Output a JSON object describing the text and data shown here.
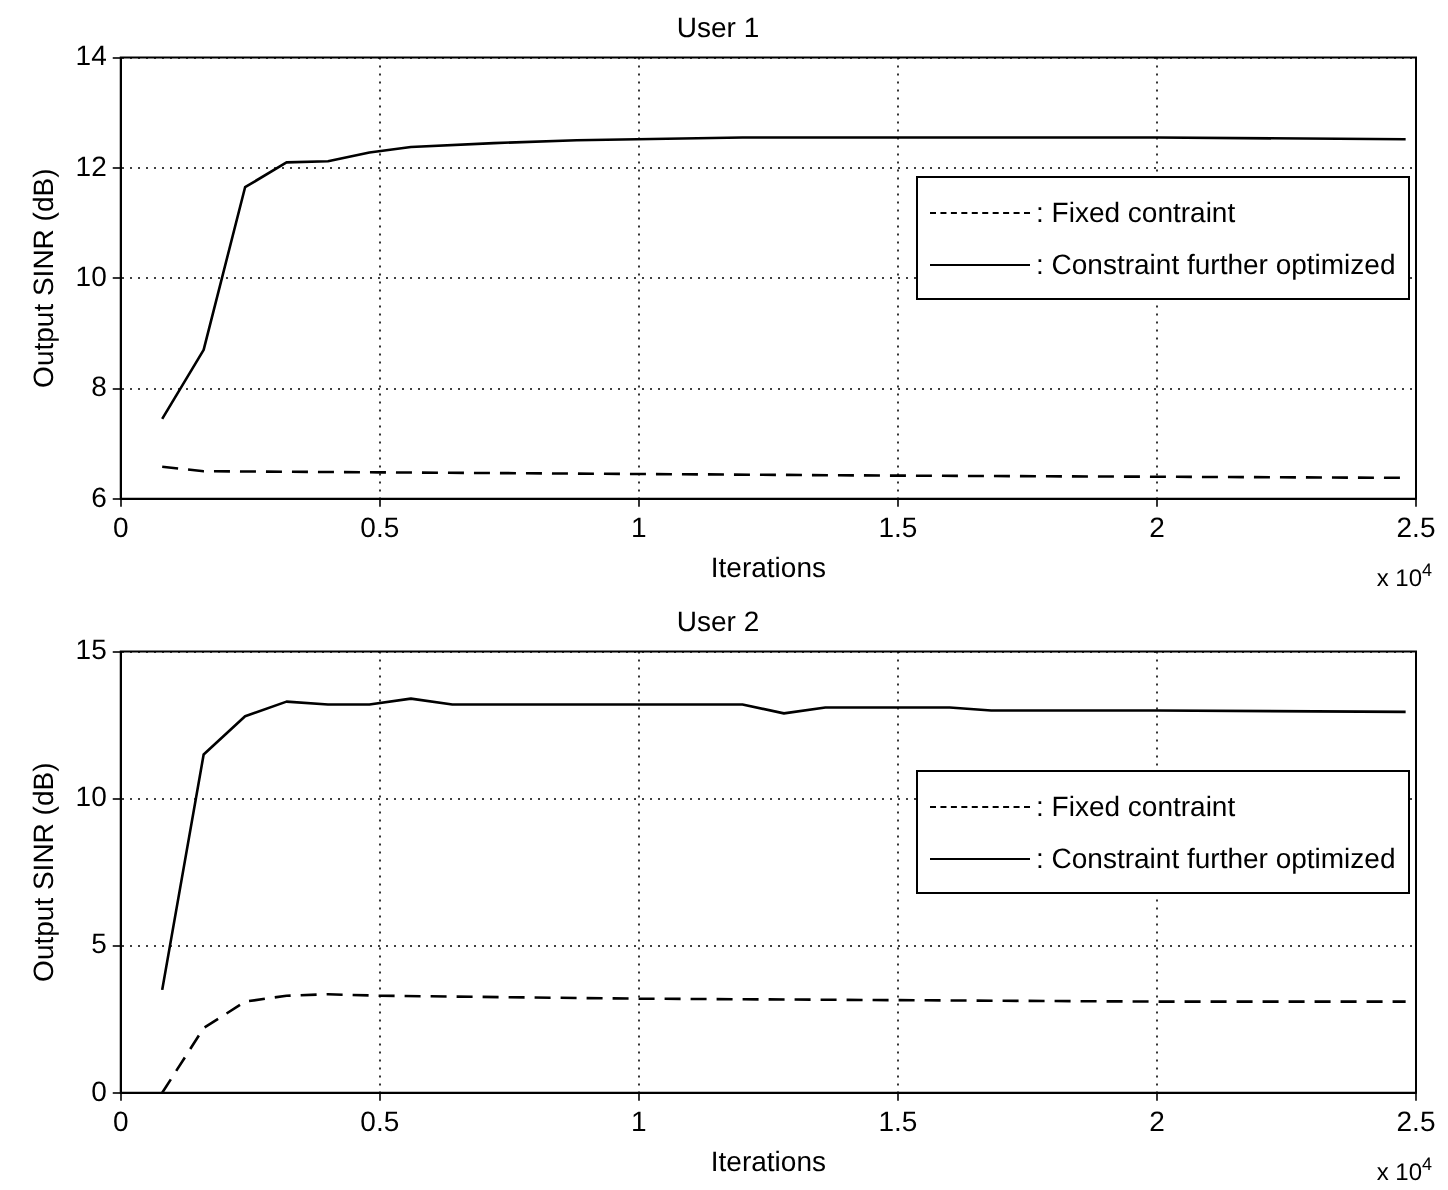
{
  "chart_data": [
    {
      "type": "line",
      "title": "User 1",
      "xlabel": "Iterations",
      "ylabel": "Output SINR (dB)",
      "xlim": [
        0,
        2.5
      ],
      "xticks": [
        0,
        0.5,
        1,
        1.5,
        2,
        2.5
      ],
      "ylim": [
        6,
        14
      ],
      "yticks": [
        6,
        8,
        10,
        12,
        14
      ],
      "grid": true,
      "legend": "right",
      "marker": "none",
      "annotations": [
        "x 10$^{4}$"
      ],
      "series": [
        {
          "name": ": Fixed contraint",
          "color": "#000000",
          "line_style": "dashed",
          "x": [
            0.08,
            0.16,
            0.5,
            1.0,
            1.5,
            2.0,
            2.48
          ],
          "values": [
            6.58,
            6.5,
            6.48,
            6.45,
            6.42,
            6.4,
            6.38
          ]
        },
        {
          "name": ": Constraint further optimized",
          "color": "#000000",
          "line_style": "solid",
          "x": [
            0.08,
            0.16,
            0.24,
            0.32,
            0.4,
            0.48,
            0.56,
            0.72,
            0.88,
            1.2,
            1.6,
            2.0,
            2.48
          ],
          "values": [
            7.45,
            8.7,
            11.65,
            12.1,
            12.12,
            12.28,
            12.38,
            12.45,
            12.5,
            12.55,
            12.55,
            12.55,
            12.52
          ]
        }
      ]
    },
    {
      "type": "line",
      "title": "User 2",
      "xlabel": "Iterations",
      "ylabel": "Output SINR (dB)",
      "xlim": [
        0,
        2.5
      ],
      "xticks": [
        0,
        0.5,
        1,
        1.5,
        2,
        2.5
      ],
      "ylim": [
        0,
        15
      ],
      "yticks": [
        0,
        5,
        10,
        15
      ],
      "grid": true,
      "legend": "right",
      "marker": "none",
      "annotations": [
        "x 10$^{4}$"
      ],
      "series": [
        {
          "name": ": Fixed contraint",
          "color": "#000000",
          "line_style": "dashed",
          "x": [
            0.08,
            0.16,
            0.24,
            0.32,
            0.4,
            0.5,
            1.0,
            1.5,
            2.0,
            2.48
          ],
          "values": [
            0,
            2.2,
            3.1,
            3.3,
            3.35,
            3.3,
            3.2,
            3.15,
            3.1,
            3.1
          ]
        },
        {
          "name": ": Constraint further optimized",
          "color": "#000000",
          "line_style": "solid",
          "x": [
            0.08,
            0.16,
            0.24,
            0.32,
            0.4,
            0.48,
            0.56,
            0.64,
            0.8,
            1.2,
            1.28,
            1.36,
            1.6,
            1.68,
            2.0,
            2.48
          ],
          "values": [
            3.5,
            11.5,
            12.8,
            13.3,
            13.2,
            13.2,
            13.4,
            13.2,
            13.2,
            13.2,
            12.9,
            13.1,
            13.1,
            13.0,
            13.0,
            12.95
          ]
        }
      ]
    }
  ]
}
